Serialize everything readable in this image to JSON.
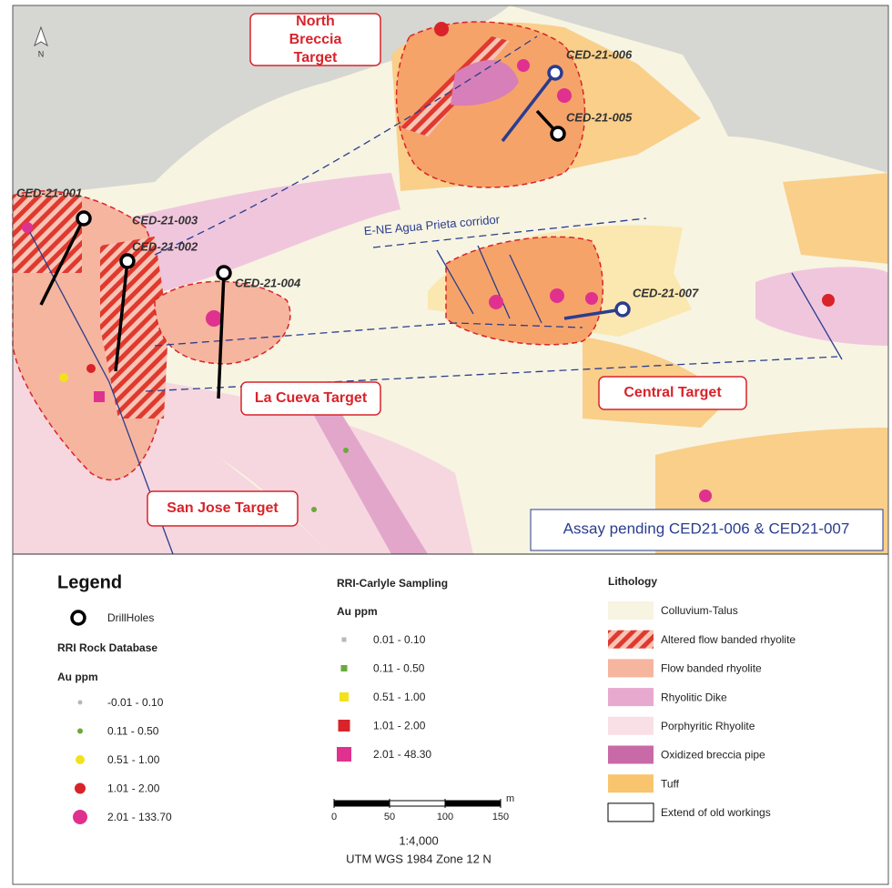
{
  "map": {
    "north_arrow": "N",
    "targets": [
      "North Breccia Target",
      "La Cueva Target",
      "Central Target",
      "San Jose Target"
    ],
    "drillholes": [
      "CED-21-001",
      "CED-21-003",
      "CED-21-002",
      "CED-21-004",
      "CED-21-006",
      "CED-21-005",
      "CED-21-007"
    ],
    "corridor": "E-NE Agua Prieta corridor",
    "note": "Assay pending CED21-006 & CED21-007"
  },
  "legend": {
    "title": "Legend",
    "drillholes": "DrillHoles",
    "rock_database": {
      "title": "RRI Rock Database",
      "unit": "Au ppm",
      "classes": [
        "-0.01 - 0.10",
        "0.11 - 0.50",
        "0.51 - 1.00",
        "1.01 - 2.00",
        "2.01 - 133.70"
      ]
    },
    "sampling": {
      "title": "RRI-Carlyle Sampling",
      "unit": "Au ppm",
      "classes": [
        "0.01 - 0.10",
        "0.11 - 0.50",
        "0.51 - 1.00",
        "1.01 - 2.00",
        "2.01 - 48.30"
      ]
    },
    "lithology": {
      "title": "Lithology",
      "classes": [
        "Colluvium-Talus",
        "Altered flow banded rhyolite",
        "Flow banded rhyolite",
        "Rhyolitic Dike",
        "Porphyritic Rhyolite",
        "Oxidized breccia pipe",
        "Tuff",
        "Extend of old workings"
      ]
    }
  },
  "scale": {
    "ticks": [
      0,
      50,
      100,
      150
    ],
    "unit": "m",
    "ratio": "1:4,000",
    "projection": "UTM WGS 1984 Zone 12 N"
  }
}
